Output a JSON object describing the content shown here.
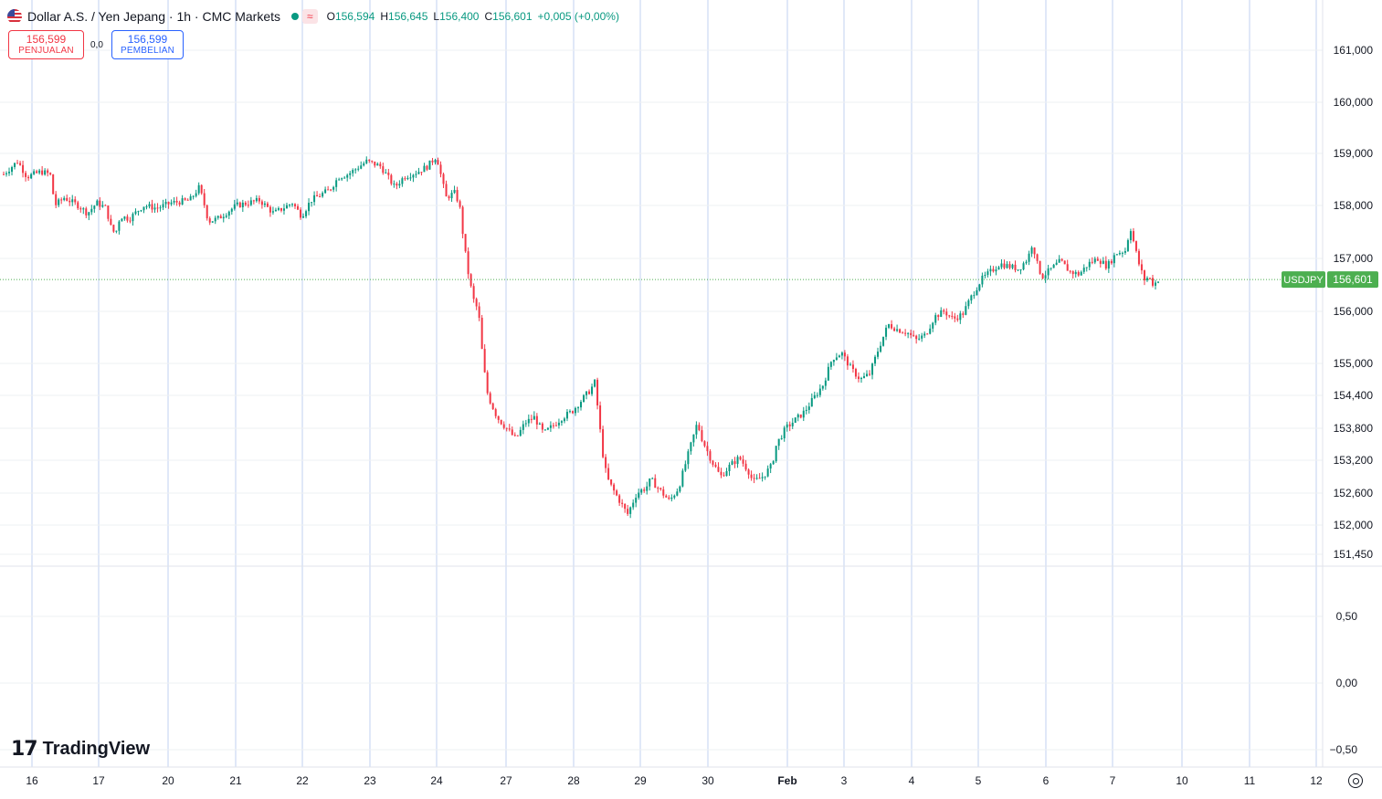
{
  "header": {
    "title": "Dollar A.S. / Yen Jepang · 1h · CMC Markets",
    "wave_icon": "≈",
    "ohlc": [
      {
        "k": "O",
        "v": "156,594"
      },
      {
        "k": "H",
        "v": "156,645"
      },
      {
        "k": "L",
        "v": "156,400"
      },
      {
        "k": "C",
        "v": "156,601"
      }
    ],
    "change": "+0,005 (+0,00%)"
  },
  "trade": {
    "sell_price": "156,599",
    "sell_label": "PENJUALAN",
    "spread": "0,0",
    "buy_price": "156,599",
    "buy_label": "PEMBELIAN"
  },
  "logo": {
    "mark": "17",
    "text": "TradingView"
  },
  "colors": {
    "up": "#089981",
    "down": "#f23645",
    "grid": "#c2d1f0",
    "last_price_bg": "#4caf50",
    "text": "#131722"
  },
  "chart_data": {
    "type": "candlestick",
    "symbol": "USDJPY",
    "last_price": "156,601",
    "price_ticks": [
      "161,000",
      "160,000",
      "159,000",
      "158,000",
      "157,000",
      "156,000",
      "155,000",
      "154,400",
      "153,800",
      "153,200",
      "152,600",
      "152,000",
      "151,450"
    ],
    "indicator_ticks": [
      "0,50",
      "0,00",
      "−0,50"
    ],
    "x_ticks": [
      "16",
      "17",
      "20",
      "21",
      "22",
      "23",
      "24",
      "27",
      "28",
      "29",
      "30",
      "Feb",
      "3",
      "4",
      "5",
      "6",
      "7",
      "10",
      "11",
      "12"
    ],
    "ylim": [
      151.35,
      161.45
    ],
    "close_path": [
      [
        0,
        158.6
      ],
      [
        3,
        158.85
      ],
      [
        5,
        158.55
      ],
      [
        8,
        158.65
      ],
      [
        10,
        158.6
      ],
      [
        11,
        158.0
      ],
      [
        13,
        158.15
      ],
      [
        16,
        158.0
      ],
      [
        18,
        157.85
      ],
      [
        20,
        158.05
      ],
      [
        22,
        157.95
      ],
      [
        23,
        157.6
      ],
      [
        24,
        157.45
      ],
      [
        25,
        157.8
      ],
      [
        27,
        157.75
      ],
      [
        30,
        158.0
      ],
      [
        33,
        157.95
      ],
      [
        36,
        158.05
      ],
      [
        40,
        158.1
      ],
      [
        42,
        158.35
      ],
      [
        43,
        158.05
      ],
      [
        44,
        157.7
      ],
      [
        46,
        157.75
      ],
      [
        50,
        158.0
      ],
      [
        55,
        158.1
      ],
      [
        58,
        157.85
      ],
      [
        62,
        158.05
      ],
      [
        64,
        157.8
      ],
      [
        66,
        158.1
      ],
      [
        70,
        158.3
      ],
      [
        72,
        158.55
      ],
      [
        74,
        158.6
      ],
      [
        78,
        158.85
      ],
      [
        81,
        158.75
      ],
      [
        84,
        158.35
      ],
      [
        86,
        158.55
      ],
      [
        89,
        158.65
      ],
      [
        91,
        158.75
      ],
      [
        93,
        158.95
      ],
      [
        95,
        158.15
      ],
      [
        97,
        158.25
      ],
      [
        98,
        157.95
      ],
      [
        99,
        157.2
      ],
      [
        100,
        156.6
      ],
      [
        101,
        156.2
      ],
      [
        102,
        156.0
      ],
      [
        103,
        155.0
      ],
      [
        104,
        154.4
      ],
      [
        106,
        154.0
      ],
      [
        108,
        153.8
      ],
      [
        110,
        153.6
      ],
      [
        112,
        153.9
      ],
      [
        114,
        154.0
      ],
      [
        116,
        153.7
      ],
      [
        118,
        153.85
      ],
      [
        120,
        154.0
      ],
      [
        122,
        154.1
      ],
      [
        124,
        154.3
      ],
      [
        126,
        154.5
      ],
      [
        127,
        154.65
      ],
      [
        128,
        153.85
      ],
      [
        129,
        153.1
      ],
      [
        130,
        152.8
      ],
      [
        132,
        152.5
      ],
      [
        134,
        152.2
      ],
      [
        136,
        152.6
      ],
      [
        138,
        152.7
      ],
      [
        139,
        152.85
      ],
      [
        141,
        152.65
      ],
      [
        143,
        152.45
      ],
      [
        145,
        152.7
      ],
      [
        147,
        153.3
      ],
      [
        149,
        153.9
      ],
      [
        150,
        153.6
      ],
      [
        152,
        153.2
      ],
      [
        154,
        152.9
      ],
      [
        156,
        153.1
      ],
      [
        158,
        153.25
      ],
      [
        160,
        153.0
      ],
      [
        161,
        152.8
      ],
      [
        163,
        152.9
      ],
      [
        165,
        153.1
      ],
      [
        166,
        153.5
      ],
      [
        168,
        153.8
      ],
      [
        170,
        153.95
      ],
      [
        172,
        154.1
      ],
      [
        174,
        154.35
      ],
      [
        176,
        154.6
      ],
      [
        178,
        155.1
      ],
      [
        180,
        155.2
      ],
      [
        182,
        154.9
      ],
      [
        184,
        154.7
      ],
      [
        186,
        154.8
      ],
      [
        188,
        155.3
      ],
      [
        190,
        155.75
      ],
      [
        192,
        155.65
      ],
      [
        194,
        155.6
      ],
      [
        196,
        155.45
      ],
      [
        198,
        155.55
      ],
      [
        200,
        155.9
      ],
      [
        202,
        156.0
      ],
      [
        204,
        155.85
      ],
      [
        206,
        155.95
      ],
      [
        208,
        156.3
      ],
      [
        210,
        156.6
      ],
      [
        212,
        156.75
      ],
      [
        214,
        156.9
      ],
      [
        216,
        156.85
      ],
      [
        218,
        156.8
      ],
      [
        220,
        157.0
      ],
      [
        221,
        157.3
      ],
      [
        222,
        156.9
      ],
      [
        223,
        156.65
      ],
      [
        225,
        156.8
      ],
      [
        227,
        156.95
      ],
      [
        229,
        156.75
      ],
      [
        231,
        156.7
      ],
      [
        233,
        156.9
      ],
      [
        235,
        157.0
      ],
      [
        237,
        156.85
      ],
      [
        239,
        157.1
      ],
      [
        241,
        157.15
      ],
      [
        242,
        157.6
      ],
      [
        243,
        157.2
      ],
      [
        244,
        156.85
      ],
      [
        245,
        156.6
      ],
      [
        246,
        156.65
      ],
      [
        247,
        156.5
      ],
      [
        248,
        156.6
      ]
    ]
  }
}
